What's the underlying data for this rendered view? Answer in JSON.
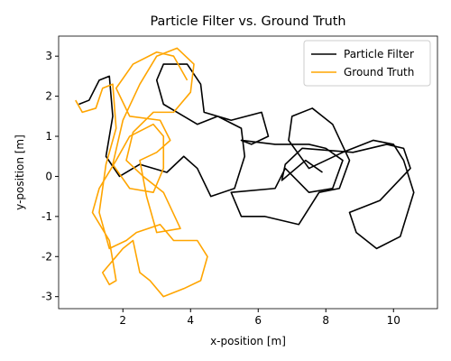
{
  "chart_data": {
    "type": "line",
    "title": "Particle Filter vs. Ground Truth",
    "xlabel": "x-position [m]",
    "ylabel": "y-position [m]",
    "xlim": [
      0.1,
      11.3
    ],
    "ylim": [
      -3.3,
      3.5
    ],
    "xticks": [
      2,
      4,
      6,
      8,
      10
    ],
    "yticks": [
      -3,
      -2,
      -1,
      0,
      1,
      2,
      3
    ],
    "legend": "upper right",
    "series": [
      {
        "name": "Particle Filter",
        "color": "#000000",
        "x": [
          0.7,
          1,
          1.3,
          1.6,
          1.7,
          1.5,
          1.9,
          2.5,
          3.3,
          3.8,
          4.2,
          4.6,
          5.3,
          5.6,
          5.5,
          4.8,
          4.2,
          3.8,
          3.2,
          3,
          3.2,
          3.9,
          4.3,
          4.4,
          5.2,
          6.1,
          6.3,
          5.8,
          5.5,
          6.5,
          7.5,
          8,
          8.5,
          8.2,
          7.5,
          6.8,
          6.5,
          5.2,
          5.5,
          6.2,
          7.2,
          7.8,
          8.4,
          8.7,
          8.2,
          7.6,
          7,
          6.9,
          7.5,
          8.5,
          9.4,
          10,
          10.3,
          10.6,
          10.2,
          9.5,
          8.9,
          8.7,
          9.6,
          10.5,
          10.3,
          9.8,
          8.8,
          7.3,
          6.8,
          6.7,
          7.4,
          7.9
        ],
        "values": [
          1.8,
          1.9,
          2.4,
          2.5,
          1.5,
          0.5,
          0,
          0.3,
          0.1,
          0.5,
          0.2,
          -0.5,
          -0.3,
          0.5,
          1.2,
          1.5,
          1.3,
          1.5,
          1.8,
          2.4,
          2.8,
          2.8,
          2.3,
          1.6,
          1.4,
          1.6,
          1.0,
          0.8,
          0.9,
          0.8,
          0.8,
          0.7,
          0.4,
          -0.3,
          -0.4,
          0.2,
          -0.3,
          -0.4,
          -1.0,
          -1.0,
          -1.2,
          -0.4,
          -0.3,
          0.4,
          1.3,
          1.7,
          1.5,
          0.9,
          0.2,
          0.6,
          0.9,
          0.8,
          0.4,
          -0.4,
          -1.5,
          -1.8,
          -1.4,
          -0.9,
          -0.6,
          0.2,
          0.7,
          0.8,
          0.6,
          0.7,
          0.3,
          -0.1,
          0.4,
          0.1
        ]
      },
      {
        "name": "Ground Truth",
        "color": "#ffa500",
        "x": [
          0.6,
          0.8,
          1.2,
          1.4,
          1.7,
          1.8,
          1.5,
          1.3,
          1.6,
          2.1,
          2.4,
          3.1,
          3.5,
          4.2,
          4.5,
          4.3,
          3.8,
          3.2,
          2.8,
          2.5,
          2.3,
          2.0,
          1.4,
          1.6,
          1.8,
          1.6,
          1.1,
          1.3,
          1.8,
          2.2,
          2.9,
          3.2,
          3.2,
          2.9,
          2.2,
          1.7,
          2.0,
          2.5,
          3.0,
          3.6,
          4.1,
          4.0,
          3.5,
          2.9,
          2.3,
          2.1,
          2.6,
          3.2,
          3.7,
          3.0,
          2.7,
          2.5,
          3.0,
          3.4,
          3.1,
          2.2,
          1.8,
          2.3,
          3.0,
          3.5,
          3.9
        ],
        "values": [
          1.9,
          1.6,
          1.7,
          2.2,
          2.3,
          1.2,
          0.3,
          -0.9,
          -1.8,
          -1.6,
          -1.4,
          -1.2,
          -1.6,
          -1.6,
          -2.0,
          -2.6,
          -2.8,
          -3.0,
          -2.6,
          -2.4,
          -1.6,
          -1.8,
          -2.4,
          -2.7,
          -2.6,
          -1.6,
          -0.9,
          -0.3,
          0.4,
          1.0,
          1.3,
          1.0,
          0.2,
          -0.4,
          -0.3,
          0.3,
          1.4,
          2.3,
          3.0,
          3.2,
          2.8,
          2.1,
          1.6,
          1.6,
          1.1,
          0.4,
          0.0,
          -0.4,
          -1.3,
          -1.4,
          -0.5,
          0.4,
          0.6,
          0.9,
          1.4,
          1.5,
          2.2,
          2.8,
          3.1,
          3.0,
          2.4
        ]
      }
    ]
  }
}
